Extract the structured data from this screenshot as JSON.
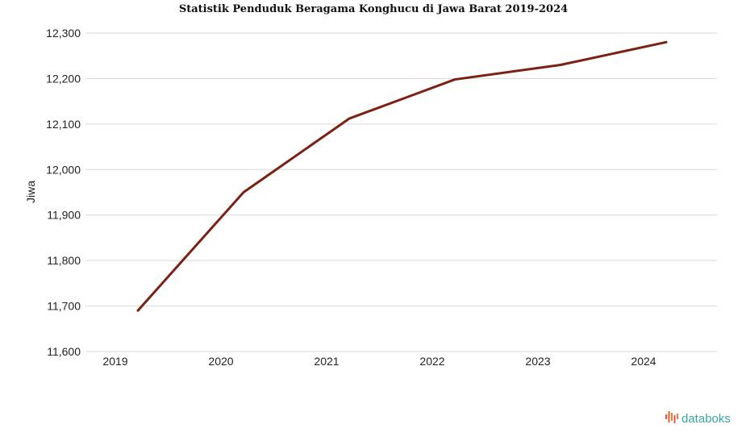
{
  "chart_data": {
    "type": "line",
    "title": "Statistik Penduduk Beragama Konghucu di Jawa Barat 2019-2024",
    "ylabel": "Jiwa",
    "xlabel": "",
    "categories": [
      "2019",
      "2020",
      "2021",
      "2022",
      "2023",
      "2024"
    ],
    "series": [
      {
        "values": [
          11690,
          11950,
          12112,
          12198,
          12230,
          12280
        ]
      }
    ],
    "ylim": [
      11600,
      12300
    ],
    "yticks": [
      11600,
      11700,
      11800,
      11900,
      12000,
      12100,
      12200,
      12300
    ],
    "ytick_labels": [
      "11,600",
      "11,700",
      "11,800",
      "11,900",
      "12,000",
      "12,100",
      "12,200",
      "12,300"
    ],
    "grid": true,
    "legend": "none",
    "colors": {
      "line": "#7b2114",
      "grid": "#d9d9d9"
    }
  },
  "brand": {
    "name": "databoks",
    "icon": "databoks-logo-icon",
    "colors": {
      "text": "#3aa6a1",
      "icon": "#e8553a"
    }
  }
}
